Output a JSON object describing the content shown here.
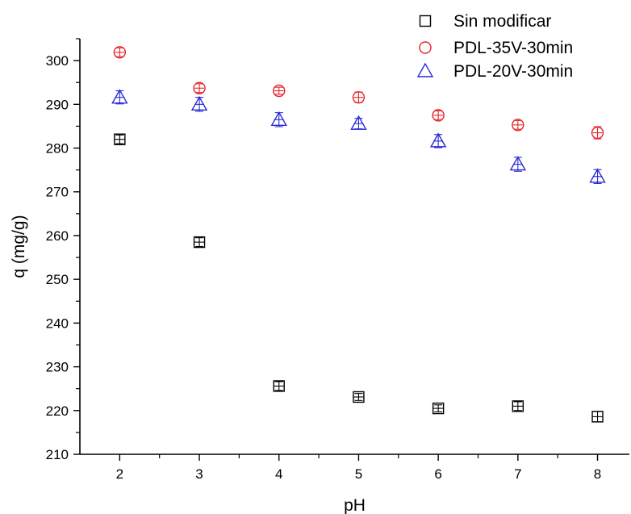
{
  "chart_data": {
    "type": "scatter",
    "xlabel": "pH",
    "ylabel": "q (mg/g)",
    "xlim": [
      1.5,
      8.4
    ],
    "ylim": [
      210,
      305
    ],
    "xticks": [
      2,
      3,
      4,
      5,
      6,
      7,
      8
    ],
    "yticks": [
      210,
      220,
      230,
      240,
      250,
      260,
      270,
      280,
      290,
      300
    ],
    "grid": false,
    "legend_position": "top-right",
    "series": [
      {
        "name": "Sin modificar",
        "marker": "square",
        "color": "#000000",
        "x": [
          2,
          3,
          4,
          5,
          6,
          7,
          8
        ],
        "y": [
          282.0,
          258.5,
          225.6,
          223.1,
          220.5,
          221.0,
          218.6
        ],
        "err": [
          1.0,
          1.0,
          1.0,
          0.8,
          0.8,
          1.0,
          1.2
        ]
      },
      {
        "name": "PDL-35V-30min",
        "marker": "circle",
        "color": "#e8242b",
        "x": [
          2,
          3,
          4,
          5,
          6,
          7,
          8
        ],
        "y": [
          301.9,
          293.7,
          293.1,
          291.6,
          287.5,
          285.3,
          283.5
        ],
        "err": [
          1.0,
          1.0,
          0.8,
          1.2,
          1.0,
          1.0,
          1.4
        ]
      },
      {
        "name": "PDL-20V-30min",
        "marker": "triangle",
        "color": "#2a2ad8",
        "x": [
          2,
          3,
          4,
          5,
          6,
          7,
          8
        ],
        "y": [
          291.6,
          290.0,
          286.5,
          285.6,
          281.6,
          276.3,
          273.5
        ],
        "err": [
          1.5,
          1.6,
          1.6,
          1.2,
          1.5,
          1.6,
          1.6
        ]
      }
    ]
  }
}
